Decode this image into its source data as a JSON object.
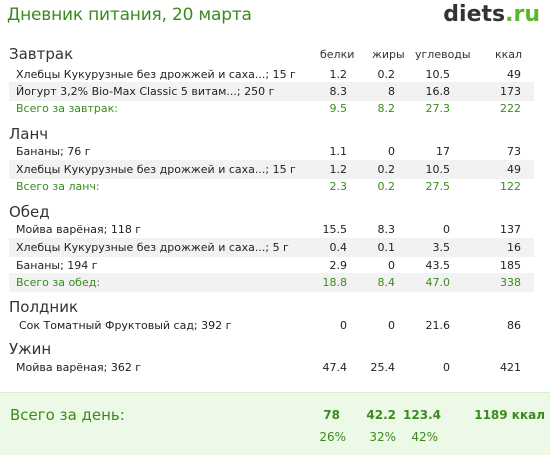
{
  "header": {
    "title": "Дневник питания, 20 марта",
    "logo_main": "diets",
    "logo_dot": ".",
    "logo_tld": "ru"
  },
  "columns": {
    "protein": "белки",
    "fat": "жиры",
    "carbs": "углеводы",
    "kcal": "ккал"
  },
  "meals": [
    {
      "title": "Завтрак",
      "items": [
        {
          "name": "Хлебцы Кукурузные без дрожжей и саха...; 15 г",
          "protein": "1.2",
          "fat": "0.2",
          "carbs": "10.5",
          "kcal": "49"
        },
        {
          "name": "Йогурт 3,2%  Bio-Max Classic 5 витам...; 250 г",
          "protein": "8.3",
          "fat": "8",
          "carbs": "16.8",
          "kcal": "173"
        }
      ],
      "total": {
        "label": "Всего за завтрак:",
        "protein": "9.5",
        "fat": "8.2",
        "carbs": "27.3",
        "kcal": "222"
      }
    },
    {
      "title": "Ланч",
      "items": [
        {
          "name": "Бананы; 76 г",
          "protein": "1.1",
          "fat": "0",
          "carbs": "17",
          "kcal": "73"
        },
        {
          "name": "Хлебцы Кукурузные без дрожжей и саха...; 15 г",
          "protein": "1.2",
          "fat": "0.2",
          "carbs": "10.5",
          "kcal": "49"
        }
      ],
      "total": {
        "label": "Всего за ланч:",
        "protein": "2.3",
        "fat": "0.2",
        "carbs": "27.5",
        "kcal": "122"
      }
    },
    {
      "title": "Обед",
      "items": [
        {
          "name": "Мойва варёная; 118 г",
          "protein": "15.5",
          "fat": "8.3",
          "carbs": "0",
          "kcal": "137"
        },
        {
          "name": "Хлебцы Кукурузные без дрожжей и саха...; 5 г",
          "protein": "0.4",
          "fat": "0.1",
          "carbs": "3.5",
          "kcal": "16"
        },
        {
          "name": "Бананы; 194 г",
          "protein": "2.9",
          "fat": "0",
          "carbs": "43.5",
          "kcal": "185"
        }
      ],
      "total": {
        "label": "Всего за обед:",
        "protein": "18.8",
        "fat": "8.4",
        "carbs": "47.0",
        "kcal": "338"
      }
    },
    {
      "title": "Полдник",
      "items": [
        {
          "name": "Сок Томатный Фруктовый сад; 392 г",
          "protein": "0",
          "fat": "0",
          "carbs": "21.6",
          "kcal": "86"
        }
      ]
    },
    {
      "title": "Ужин",
      "items": [
        {
          "name": "Мойва варёная; 362 г",
          "protein": "47.4",
          "fat": "25.4",
          "carbs": "0",
          "kcal": "421"
        }
      ]
    }
  ],
  "day_total": {
    "label": "Всего за день:",
    "protein": "78",
    "fat": "42.2",
    "carbs": "123.4",
    "kcal": "1189 ккал",
    "protein_pct": "26%",
    "fat_pct": "32%",
    "carbs_pct": "42%"
  },
  "colors": {
    "accent_green": "#3c8a1e",
    "logo_green": "#5cb82b",
    "row_shade": "#f2f2f2",
    "total_bg": "#ecf9e7"
  }
}
